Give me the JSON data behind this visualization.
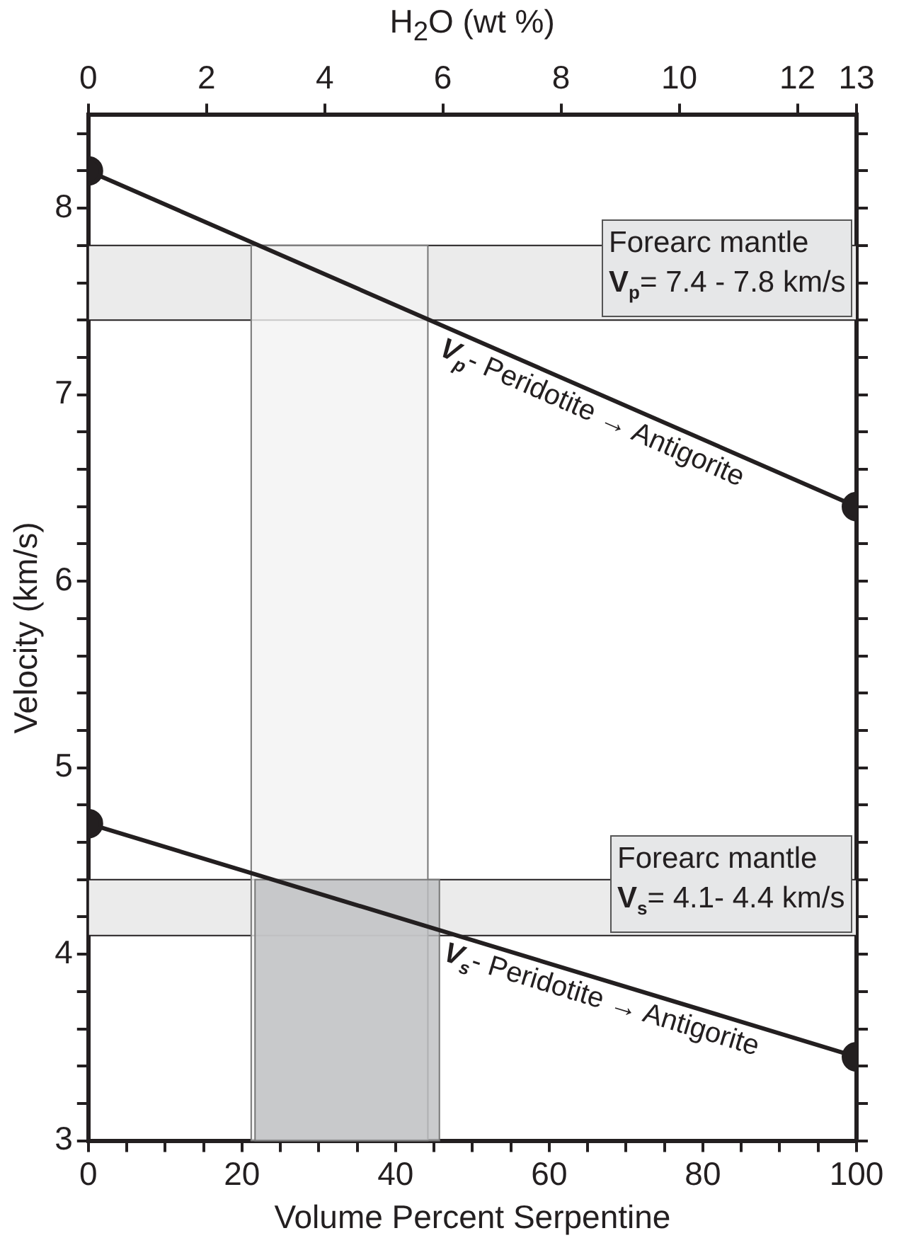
{
  "chart_data": {
    "type": "line",
    "xlabel": "Volume Percent Serpentine",
    "ylabel": "Velocity (km/s)",
    "x2label": "H$_{2}$O (wt %)",
    "xlim": [
      0,
      100
    ],
    "xticks": [
      0,
      {
        "value": 5,
        "label": null
      },
      20,
      {
        "value": 10,
        "label": null
      },
      {
        "value": 15,
        "label": null
      },
      {
        "value": 25,
        "label": null
      },
      {
        "value": 30,
        "label": null
      },
      {
        "value": 35,
        "label": null
      },
      40,
      {
        "value": 45,
        "label": null
      },
      {
        "value": 50,
        "label": null
      },
      {
        "value": 55,
        "label": null
      },
      60,
      {
        "value": 65,
        "label": null
      },
      {
        "value": 70,
        "label": null
      },
      {
        "value": 75,
        "label": null
      },
      80,
      {
        "value": 85,
        "label": null
      },
      {
        "value": 90,
        "label": null
      },
      {
        "value": 95,
        "label": null
      },
      100
    ],
    "x2lim": [
      0,
      13
    ],
    "x2ticks": [
      0,
      2,
      4,
      6,
      8,
      10,
      12,
      13
    ],
    "ylim": [
      3,
      8.5
    ],
    "yticks": [
      3,
      {
        "value": 3.2,
        "label": null
      },
      {
        "value": 3.4,
        "label": null
      },
      {
        "value": 3.6,
        "label": null
      },
      {
        "value": 3.8,
        "label": null
      },
      4,
      {
        "value": 4.2,
        "label": null
      },
      {
        "value": 4.4,
        "label": null
      },
      {
        "value": 4.6,
        "label": null
      },
      {
        "value": 4.8,
        "label": null
      },
      5,
      {
        "value": 5.2,
        "label": null
      },
      {
        "value": 5.4,
        "label": null
      },
      {
        "value": 5.6,
        "label": null
      },
      {
        "value": 5.8,
        "label": null
      },
      6,
      {
        "value": 6.2,
        "label": null
      },
      {
        "value": 6.4,
        "label": null
      },
      {
        "value": 6.6,
        "label": null
      },
      {
        "value": 6.8,
        "label": null
      },
      7,
      {
        "value": 7.2,
        "label": null
      },
      {
        "value": 7.4,
        "label": null
      },
      {
        "value": 7.6,
        "label": null
      },
      {
        "value": 7.8,
        "label": null
      },
      8,
      {
        "value": 8.2,
        "label": null
      },
      {
        "value": 8.4,
        "label": null
      }
    ],
    "x": [
      0,
      100
    ],
    "series": [
      {
        "name": "V$_{p}$- Peridotite → Antigorite",
        "color": "#231f20",
        "values": [
          8.2,
          6.4
        ]
      },
      {
        "name": "V$_{s}$- Peridotite → Antigorite",
        "color": "#231f20",
        "values": [
          4.7,
          3.45
        ]
      }
    ],
    "marker": "circle",
    "line_style": "solid",
    "grid": false,
    "legend": false,
    "bands": [
      {
        "axis": "y",
        "from": 7.4,
        "to": 7.8,
        "label": "Forearc mantle\nV$_{p}$= 7.4 - 7.8 km/s",
        "color": "#ebebeb"
      },
      {
        "axis": "y",
        "from": 4.1,
        "to": 4.4,
        "label": "Forearc mantle\nV$_{s}$= 4.1- 4.4  km/s",
        "color": "#ebebeb"
      },
      {
        "axis": "x",
        "from": 21.2,
        "to": 44.2,
        "color": "#f2f2f2"
      },
      {
        "axis": "x",
        "from": 21.7,
        "to": 45.7,
        "color": "#bdbec0"
      }
    ]
  }
}
